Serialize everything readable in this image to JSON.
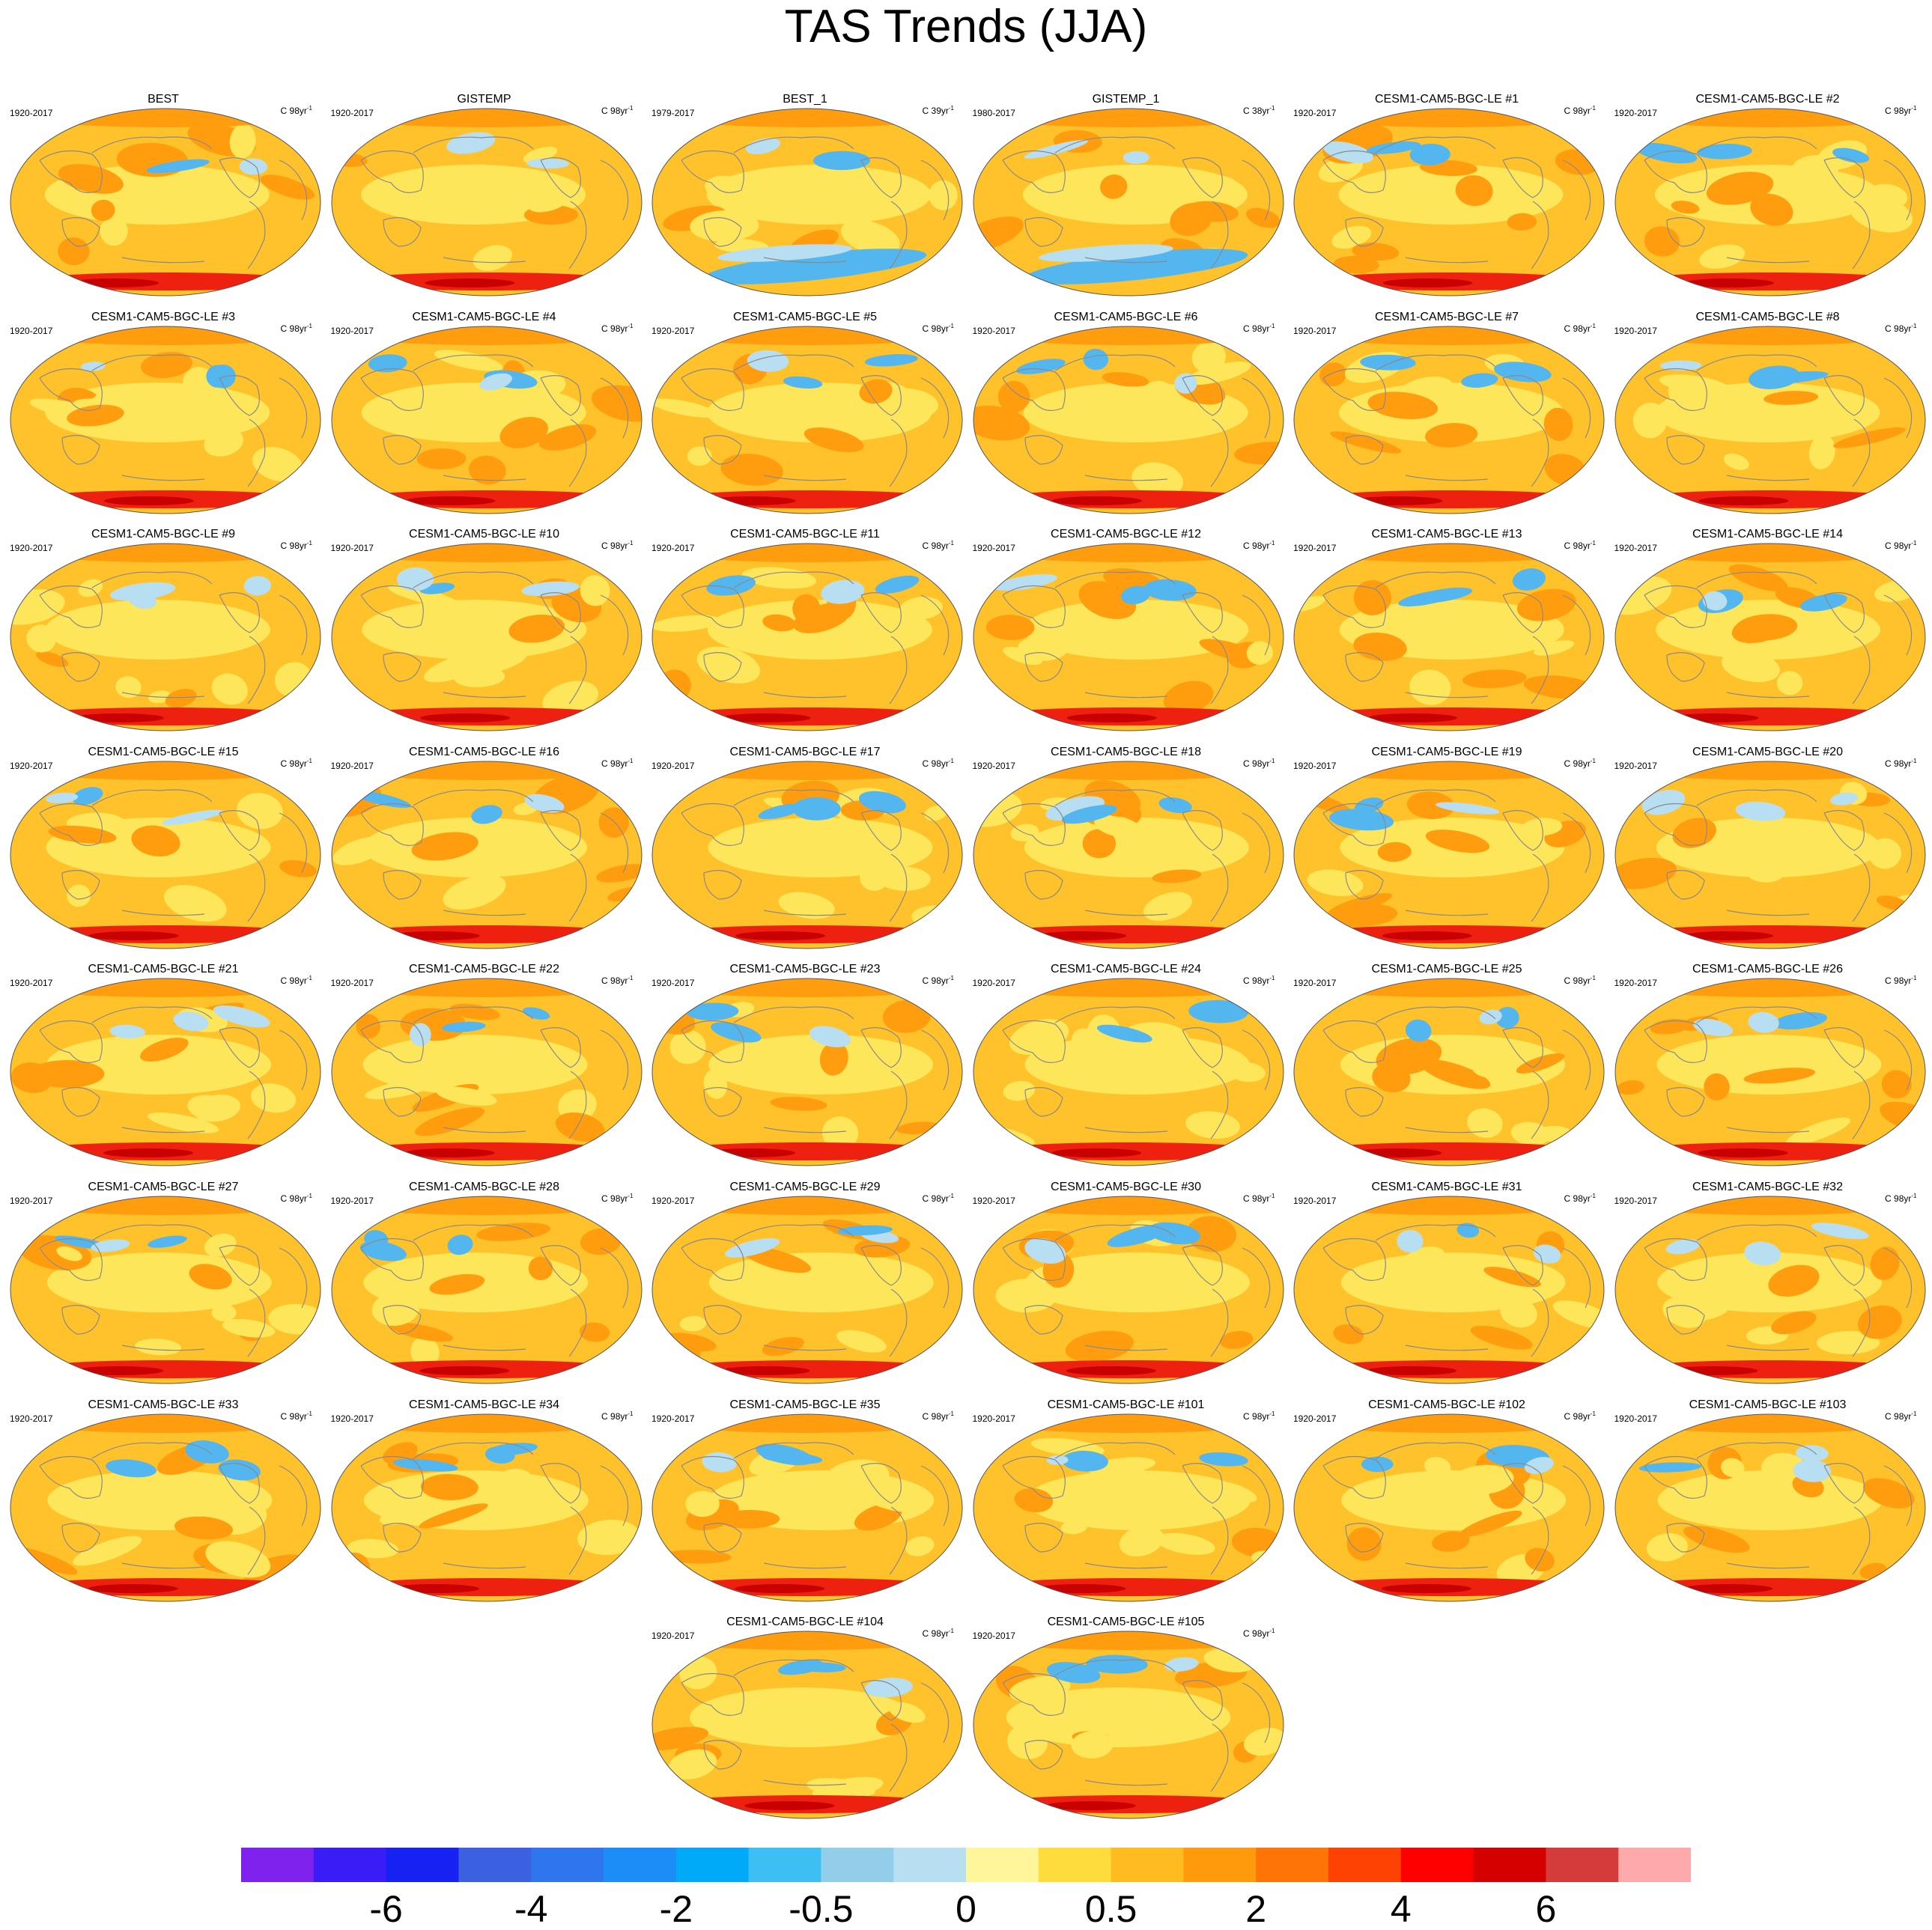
{
  "title": "TAS Trends (JJA)",
  "units_prefix": "C ",
  "units_main": "yr",
  "units_sup": "-1",
  "panels": [
    {
      "title": "BEST",
      "period": "1920-2017",
      "years": "98"
    },
    {
      "title": "GISTEMP",
      "period": "1920-2017",
      "years": "98"
    },
    {
      "title": "BEST_1",
      "period": "1979-2017",
      "years": "39"
    },
    {
      "title": "GISTEMP_1",
      "period": "1980-2017",
      "years": "38"
    },
    {
      "title": "CESM1-CAM5-BGC-LE #1",
      "period": "1920-2017",
      "years": "98"
    },
    {
      "title": "CESM1-CAM5-BGC-LE #2",
      "period": "1920-2017",
      "years": "98"
    },
    {
      "title": "CESM1-CAM5-BGC-LE #3",
      "period": "1920-2017",
      "years": "98"
    },
    {
      "title": "CESM1-CAM5-BGC-LE #4",
      "period": "1920-2017",
      "years": "98"
    },
    {
      "title": "CESM1-CAM5-BGC-LE #5",
      "period": "1920-2017",
      "years": "98"
    },
    {
      "title": "CESM1-CAM5-BGC-LE #6",
      "period": "1920-2017",
      "years": "98"
    },
    {
      "title": "CESM1-CAM5-BGC-LE #7",
      "period": "1920-2017",
      "years": "98"
    },
    {
      "title": "CESM1-CAM5-BGC-LE #8",
      "period": "1920-2017",
      "years": "98"
    },
    {
      "title": "CESM1-CAM5-BGC-LE #9",
      "period": "1920-2017",
      "years": "98"
    },
    {
      "title": "CESM1-CAM5-BGC-LE #10",
      "period": "1920-2017",
      "years": "98"
    },
    {
      "title": "CESM1-CAM5-BGC-LE #11",
      "period": "1920-2017",
      "years": "98"
    },
    {
      "title": "CESM1-CAM5-BGC-LE #12",
      "period": "1920-2017",
      "years": "98"
    },
    {
      "title": "CESM1-CAM5-BGC-LE #13",
      "period": "1920-2017",
      "years": "98"
    },
    {
      "title": "CESM1-CAM5-BGC-LE #14",
      "period": "1920-2017",
      "years": "98"
    },
    {
      "title": "CESM1-CAM5-BGC-LE #15",
      "period": "1920-2017",
      "years": "98"
    },
    {
      "title": "CESM1-CAM5-BGC-LE #16",
      "period": "1920-2017",
      "years": "98"
    },
    {
      "title": "CESM1-CAM5-BGC-LE #17",
      "period": "1920-2017",
      "years": "98"
    },
    {
      "title": "CESM1-CAM5-BGC-LE #18",
      "period": "1920-2017",
      "years": "98"
    },
    {
      "title": "CESM1-CAM5-BGC-LE #19",
      "period": "1920-2017",
      "years": "98"
    },
    {
      "title": "CESM1-CAM5-BGC-LE #20",
      "period": "1920-2017",
      "years": "98"
    },
    {
      "title": "CESM1-CAM5-BGC-LE #21",
      "period": "1920-2017",
      "years": "98"
    },
    {
      "title": "CESM1-CAM5-BGC-LE #22",
      "period": "1920-2017",
      "years": "98"
    },
    {
      "title": "CESM1-CAM5-BGC-LE #23",
      "period": "1920-2017",
      "years": "98"
    },
    {
      "title": "CESM1-CAM5-BGC-LE #24",
      "period": "1920-2017",
      "years": "98"
    },
    {
      "title": "CESM1-CAM5-BGC-LE #25",
      "period": "1920-2017",
      "years": "98"
    },
    {
      "title": "CESM1-CAM5-BGC-LE #26",
      "period": "1920-2017",
      "years": "98"
    },
    {
      "title": "CESM1-CAM5-BGC-LE #27",
      "period": "1920-2017",
      "years": "98"
    },
    {
      "title": "CESM1-CAM5-BGC-LE #28",
      "period": "1920-2017",
      "years": "98"
    },
    {
      "title": "CESM1-CAM5-BGC-LE #29",
      "period": "1920-2017",
      "years": "98"
    },
    {
      "title": "CESM1-CAM5-BGC-LE #30",
      "period": "1920-2017",
      "years": "98"
    },
    {
      "title": "CESM1-CAM5-BGC-LE #31",
      "period": "1920-2017",
      "years": "98"
    },
    {
      "title": "CESM1-CAM5-BGC-LE #32",
      "period": "1920-2017",
      "years": "98"
    },
    {
      "title": "CESM1-CAM5-BGC-LE #33",
      "period": "1920-2017",
      "years": "98"
    },
    {
      "title": "CESM1-CAM5-BGC-LE #34",
      "period": "1920-2017",
      "years": "98"
    },
    {
      "title": "CESM1-CAM5-BGC-LE #35",
      "period": "1920-2017",
      "years": "98"
    },
    {
      "title": "CESM1-CAM5-BGC-LE #101",
      "period": "1920-2017",
      "years": "98"
    },
    {
      "title": "CESM1-CAM5-BGC-LE #102",
      "period": "1920-2017",
      "years": "98"
    },
    {
      "title": "CESM1-CAM5-BGC-LE #103",
      "period": "1920-2017",
      "years": "98"
    },
    {
      "title": "CESM1-CAM5-BGC-LE #104",
      "period": "1920-2017",
      "years": "98"
    },
    {
      "title": "CESM1-CAM5-BGC-LE #105",
      "period": "1920-2017",
      "years": "98"
    }
  ],
  "colorbar": {
    "colors": [
      "#8022ee",
      "#3a1cf6",
      "#1522f2",
      "#3b60e0",
      "#2f76ee",
      "#1c8cf7",
      "#00aaf8",
      "#3dbff4",
      "#92cdea",
      "#b8def2",
      "#fff59a",
      "#fddc3b",
      "#ffbb20",
      "#ff9a0c",
      "#fe7406",
      "#fe4204",
      "#ff0000",
      "#d40000",
      "#d43c3c",
      "#ffaaaa"
    ],
    "labels": [
      "-6",
      "-4",
      "-2",
      "-0.5",
      "0",
      "0.5",
      "2",
      "4",
      "6"
    ]
  },
  "style": {
    "base_warm": "#ffc22a",
    "warm_strong": "#ff9d0f",
    "warm_light": "#fde65a",
    "cool": "#53b6ef",
    "cool_light": "#b8def2",
    "hot": "#ee2010",
    "coast": "#8a8a8a"
  }
}
